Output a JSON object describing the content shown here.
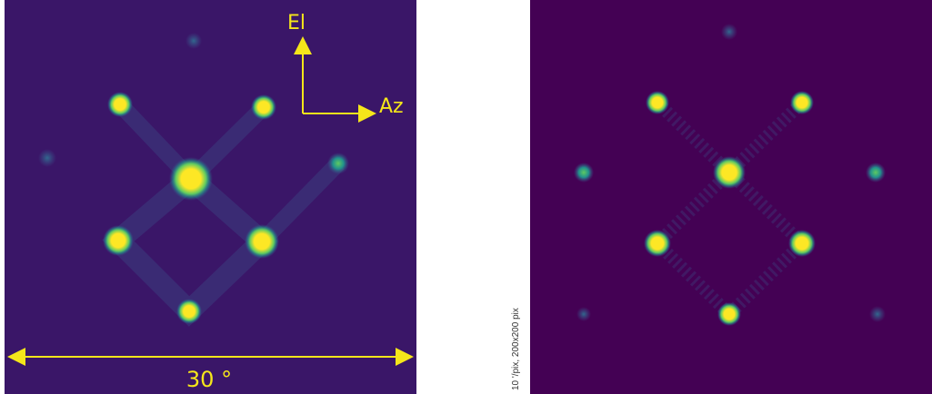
{
  "annotations": {
    "elevation": "El",
    "azimuth": "Az",
    "field_of_view": "30 °",
    "scale_note": "10 '/pix,   200x200 pix"
  }
}
